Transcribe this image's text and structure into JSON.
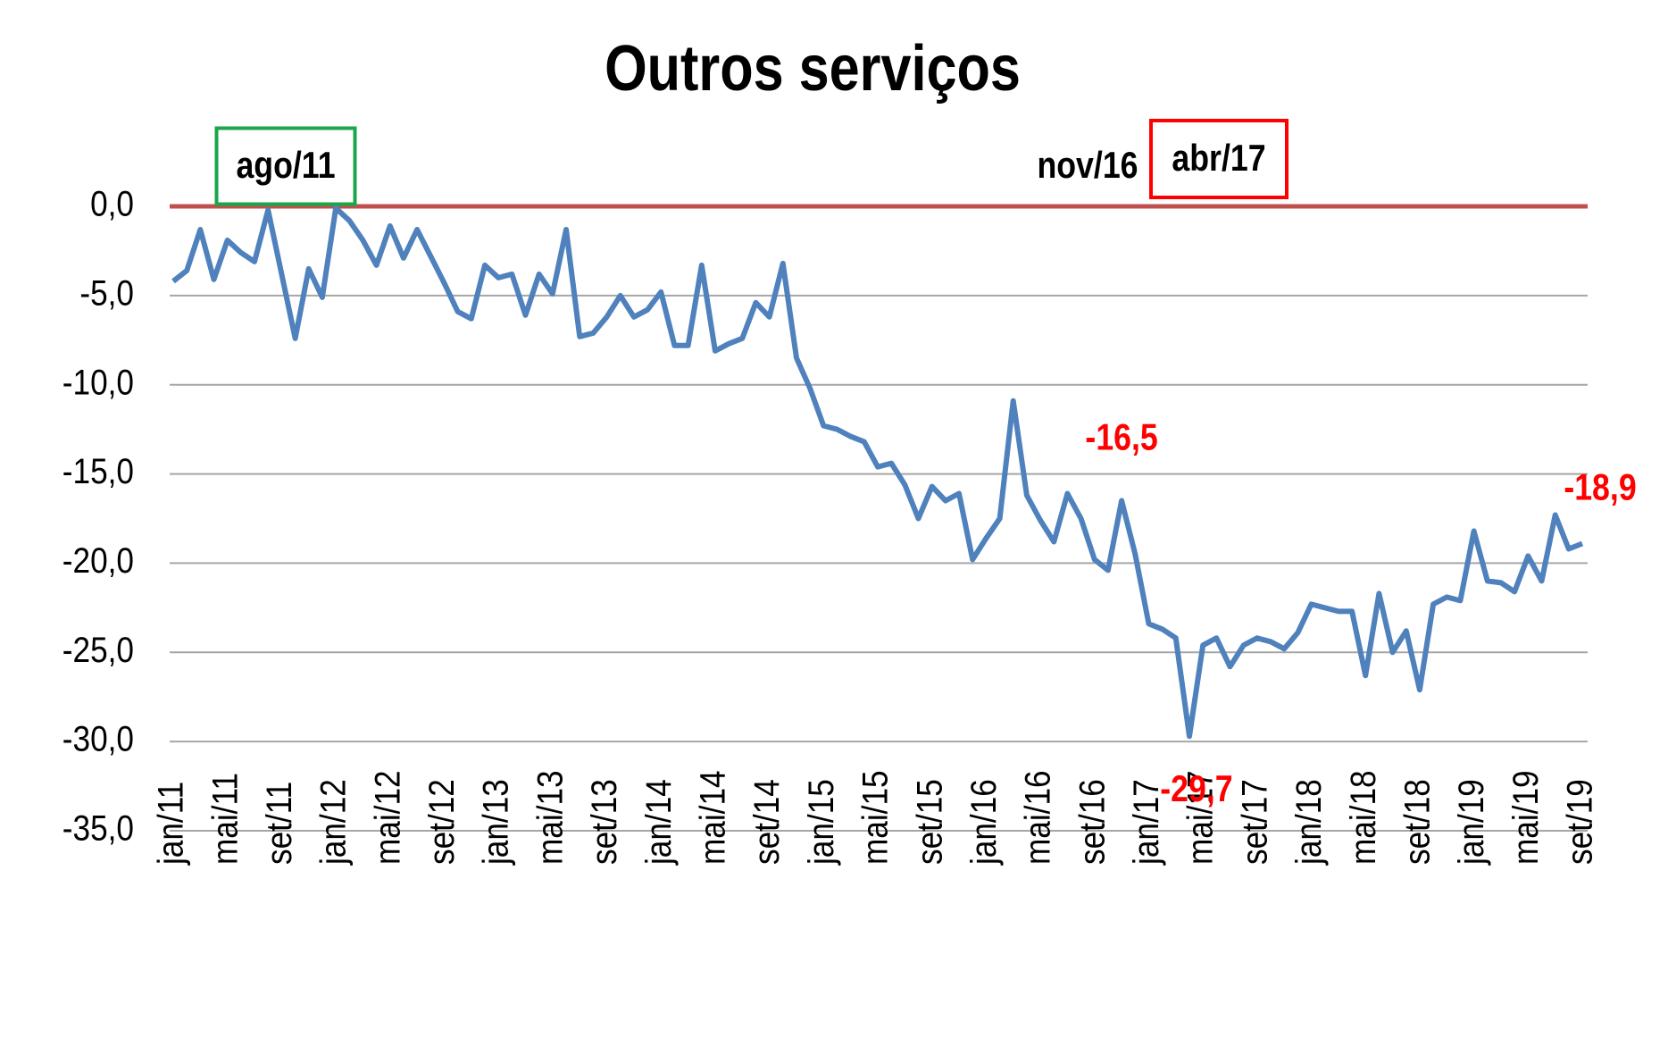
{
  "chart_data": {
    "type": "line",
    "title": "Outros serviços",
    "categories": [
      "jan/11",
      null,
      null,
      null,
      "mai/11",
      null,
      null,
      null,
      "set/11",
      null,
      null,
      null,
      "jan/12",
      null,
      null,
      null,
      "mai/12",
      null,
      null,
      null,
      "set/12",
      null,
      null,
      null,
      "jan/13",
      null,
      null,
      null,
      "mai/13",
      null,
      null,
      null,
      "set/13",
      null,
      null,
      null,
      "jan/14",
      null,
      null,
      null,
      "mai/14",
      null,
      null,
      null,
      "set/14",
      null,
      null,
      null,
      "jan/15",
      null,
      null,
      null,
      "mai/15",
      null,
      null,
      null,
      "set/15",
      null,
      null,
      null,
      "jan/16",
      null,
      null,
      null,
      "mai/16",
      null,
      null,
      null,
      "set/16",
      null,
      null,
      null,
      "jan/17",
      null,
      null,
      null,
      "mai/17",
      null,
      null,
      null,
      "set/17",
      null,
      null,
      null,
      "jan/18",
      null,
      null,
      null,
      "mai/18",
      null,
      null,
      null,
      "set/18",
      null,
      null,
      null,
      "jan/19",
      null,
      null,
      null,
      "mai/19",
      null,
      null,
      null,
      "set/19"
    ],
    "series": [
      {
        "color": "#4f81bd",
        "values": [
          -4.2,
          -3.6,
          -1.3,
          -4.1,
          -1.9,
          -2.6,
          -3.1,
          -0.2,
          -3.8,
          -7.4,
          -3.5,
          -5.1,
          -0.1,
          -0.8,
          -1.9,
          -3.3,
          -1.1,
          -2.9,
          -1.3,
          -2.8,
          -4.3,
          -5.9,
          -6.3,
          -3.3,
          -4.0,
          -3.8,
          -6.1,
          -3.8,
          -4.9,
          -1.3,
          -7.3,
          -7.1,
          -6.2,
          -5.0,
          -6.2,
          -5.8,
          -4.8,
          -7.8,
          -7.8,
          -3.3,
          -8.1,
          -7.7,
          -7.4,
          -5.4,
          -6.2,
          -3.2,
          -8.5,
          -10.2,
          -12.3,
          -12.5,
          -12.9,
          -13.2,
          -14.6,
          -14.4,
          -15.6,
          -17.5,
          -15.7,
          -16.5,
          -16.1,
          -19.8,
          -18.6,
          -17.5,
          -10.9,
          -16.2,
          -17.6,
          -18.8,
          -16.1,
          -17.5,
          -19.8,
          -20.4,
          -16.5,
          -19.5,
          -23.4,
          -23.7,
          -24.2,
          -29.7,
          -24.6,
          -24.2,
          -25.8,
          -24.6,
          -24.2,
          -24.4,
          -24.8,
          -23.9,
          -22.3,
          -22.5,
          -22.7,
          -22.7,
          -26.3,
          -21.7,
          -25.0,
          -23.8,
          -27.1,
          -22.3,
          -21.9,
          -22.1,
          -18.2,
          -21.0,
          -21.1,
          -21.6,
          -19.6,
          -21.0,
          -17.3,
          -19.2,
          -18.9
        ],
        "value_labels": [
          null,
          null,
          null,
          null,
          null,
          null,
          null,
          null,
          null,
          null,
          null,
          null,
          null,
          null,
          null,
          null,
          null,
          null,
          null,
          null,
          null,
          null,
          null,
          null,
          null,
          null,
          null,
          null,
          null,
          null,
          null,
          null,
          null,
          null,
          null,
          null,
          null,
          null,
          null,
          null,
          null,
          null,
          null,
          null,
          null,
          null,
          null,
          null,
          null,
          null,
          null,
          null,
          null,
          null,
          null,
          null,
          null,
          null,
          null,
          null,
          null,
          null,
          null,
          null,
          null,
          null,
          null,
          null,
          null,
          null,
          "-16,5",
          null,
          null,
          null,
          null,
          "-29,7",
          null,
          null,
          null,
          null,
          null,
          null,
          null,
          null,
          null,
          null,
          null,
          null,
          null,
          null,
          null,
          null,
          null,
          null,
          null,
          null,
          null,
          null,
          null,
          null,
          null,
          null,
          null,
          null,
          "-18,9"
        ]
      }
    ],
    "ylim": [
      -35,
      0
    ],
    "yticks": [
      {
        "value": 0,
        "label": "0,0"
      },
      {
        "value": -5,
        "label": "-5,0"
      },
      {
        "value": -10,
        "label": "-10,0"
      },
      {
        "value": -15,
        "label": "-15,0"
      },
      {
        "value": -20,
        "label": "-20,0"
      },
      {
        "value": -25,
        "label": "-25,0"
      },
      {
        "value": -30,
        "label": "-30,0"
      },
      {
        "value": -35,
        "label": "-35,0"
      }
    ],
    "grid": true,
    "grid_color": "#a6a6a6",
    "zero_line_color": "#c0504d",
    "value_label_color": "#ff0000",
    "annotations": [
      {
        "text": "ago/11",
        "box_color": "#1aa64a"
      },
      {
        "text": "nov/16"
      },
      {
        "text": "abr/17",
        "box_color": "#ff0000"
      }
    ]
  }
}
